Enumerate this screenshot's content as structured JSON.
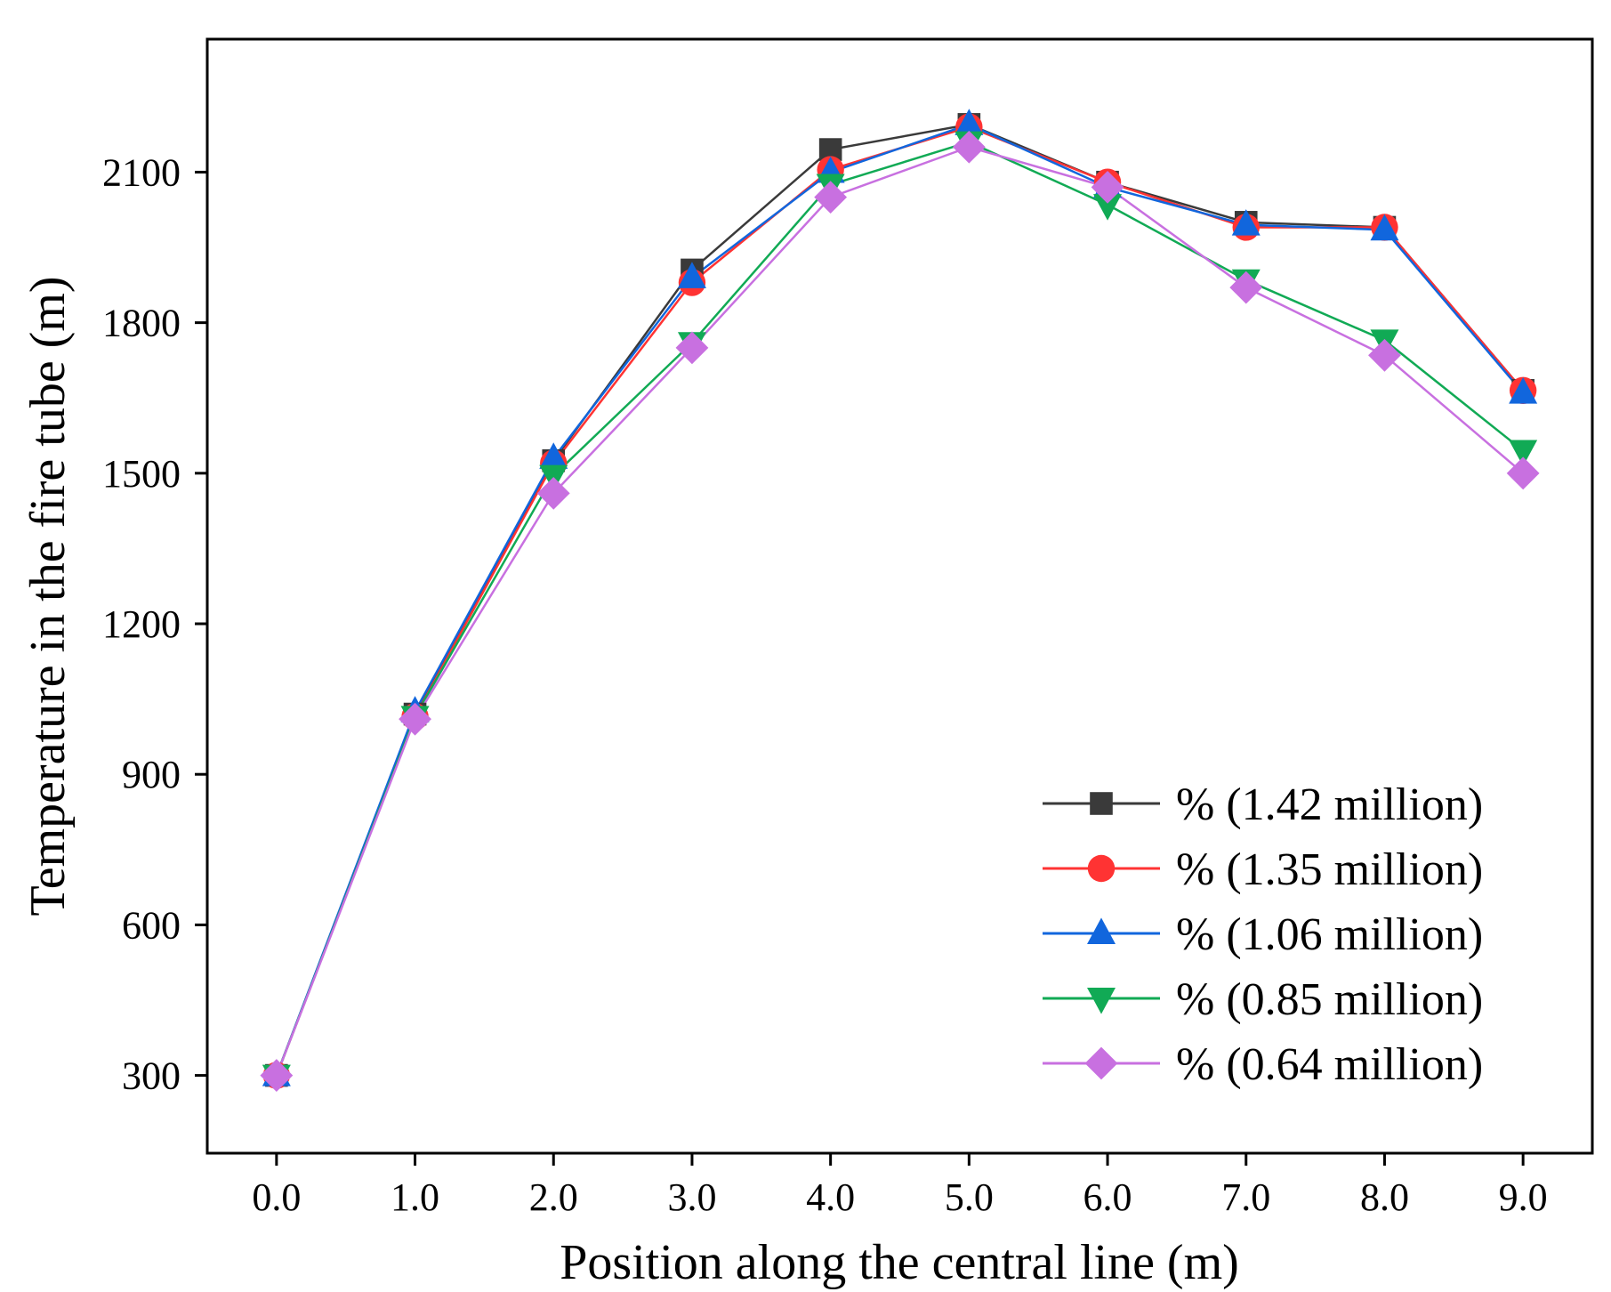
{
  "chart_data": {
    "type": "line",
    "xlabel": "Position along the central line (m)",
    "ylabel": "Temperature in the fire tube (m)",
    "x": [
      0,
      1,
      2,
      3,
      4,
      5,
      6,
      7,
      8,
      9
    ],
    "x_tick_labels": [
      "0.0",
      "1.0",
      "2.0",
      "3.0",
      "4.0",
      "5.0",
      "6.0",
      "7.0",
      "8.0",
      "9.0"
    ],
    "y_ticks": [
      300,
      600,
      900,
      1200,
      1500,
      1800,
      2100
    ],
    "xlim": [
      -0.5,
      9.5
    ],
    "ylim": [
      145,
      2365
    ],
    "grid": false,
    "legend_position": "bottom-right",
    "series": [
      {
        "name": "% (1.42 million)",
        "color": "#3a3a3a",
        "marker": "square",
        "values": [
          300,
          1020,
          1525,
          1905,
          2145,
          2195,
          2080,
          2000,
          1990,
          1665
        ]
      },
      {
        "name": "% (1.35 million)",
        "color": "#ff3333",
        "marker": "circle",
        "values": [
          300,
          1015,
          1520,
          1880,
          2105,
          2190,
          2080,
          1990,
          1990,
          1665
        ]
      },
      {
        "name": "% (1.06 million)",
        "color": "#1166dd",
        "marker": "triangle-up",
        "values": [
          300,
          1025,
          1530,
          1890,
          2100,
          2195,
          2070,
          1995,
          1985,
          1660
        ]
      },
      {
        "name": "% (0.85 million)",
        "color": "#11aa55",
        "marker": "triangle-down",
        "values": [
          300,
          1015,
          1495,
          1760,
          2075,
          2160,
          2035,
          1885,
          1765,
          1545
        ]
      },
      {
        "name": "% (0.64 million)",
        "color": "#c870e0",
        "marker": "diamond",
        "values": [
          300,
          1010,
          1460,
          1750,
          2050,
          2150,
          2070,
          1870,
          1735,
          1500
        ]
      }
    ]
  }
}
